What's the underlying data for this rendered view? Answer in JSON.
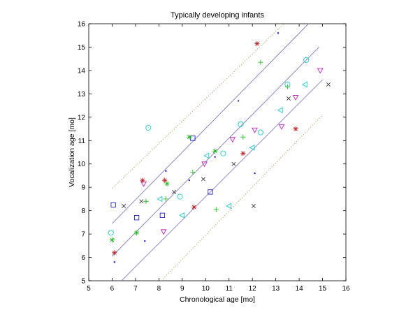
{
  "chart_data": {
    "type": "scatter",
    "title": "Typically developing infants",
    "xlabel": "Chronological age [mo]",
    "ylabel": "Vocalization age [mo]",
    "xlim": [
      5,
      16
    ],
    "ylim": [
      5,
      16
    ],
    "xticks": [
      "5",
      "6",
      "7",
      "8",
      "9",
      "10",
      "11",
      "12",
      "13",
      "14",
      "15",
      "16"
    ],
    "yticks": [
      "5",
      "6",
      "7",
      "8",
      "9",
      "10",
      "11",
      "12",
      "13",
      "14",
      "15",
      "16"
    ],
    "grid": false,
    "legend": "none",
    "colors": {
      "fit_lines": "#8080c0",
      "bound_lines": "#c8a86c",
      "blue": "#2020c0",
      "cyan": "#20c8c8",
      "green": "#20c020",
      "red": "#c02020",
      "magenta": "#c020c0",
      "black": "#404040"
    },
    "lines": [
      {
        "role": "fit-upper",
        "style": "solid",
        "x": [
          6,
          14.4
        ],
        "y": [
          7.45,
          16.0
        ]
      },
      {
        "role": "fit-center",
        "style": "solid",
        "x": [
          6,
          14.85
        ],
        "y": [
          6.05,
          15.0
        ]
      },
      {
        "role": "fit-lower",
        "style": "solid",
        "x": [
          6.4,
          15.0
        ],
        "y": [
          5.0,
          13.6
        ]
      },
      {
        "role": "bound-upper",
        "style": "dotted",
        "x": [
          6,
          13.35
        ],
        "y": [
          8.95,
          16.0
        ]
      },
      {
        "role": "bound-lower",
        "style": "dotted",
        "x": [
          8.1,
          15.0
        ],
        "y": [
          5.0,
          12.1
        ]
      }
    ],
    "series": [
      {
        "marker": "dot",
        "color": "blue",
        "points": [
          [
            6.1,
            5.8
          ],
          [
            7.4,
            6.7
          ],
          [
            8.3,
            9.7
          ],
          [
            9.3,
            9.3
          ],
          [
            10.4,
            10.3
          ],
          [
            11.4,
            12.7
          ],
          [
            12.1,
            9.6
          ],
          [
            13.1,
            15.6
          ]
        ]
      },
      {
        "marker": "square",
        "color": "blue",
        "points": [
          [
            6.05,
            8.25
          ],
          [
            7.05,
            7.7
          ],
          [
            8.15,
            7.8
          ],
          [
            9.45,
            11.1
          ],
          [
            10.2,
            8.8
          ]
        ]
      },
      {
        "marker": "circle",
        "color": "cyan",
        "points": [
          [
            5.95,
            7.05
          ],
          [
            7.55,
            11.55
          ],
          [
            8.9,
            8.6
          ],
          [
            10.75,
            10.45
          ],
          [
            11.5,
            11.7
          ],
          [
            12.35,
            11.35
          ],
          [
            13.5,
            13.4
          ],
          [
            14.3,
            14.45
          ]
        ]
      },
      {
        "marker": "triangle-left",
        "color": "cyan",
        "points": [
          [
            8.05,
            8.5
          ],
          [
            9.0,
            7.8
          ],
          [
            10.05,
            10.35
          ],
          [
            11.0,
            8.2
          ],
          [
            12.0,
            10.7
          ],
          [
            13.2,
            12.3
          ],
          [
            14.25,
            13.4
          ]
        ]
      },
      {
        "marker": "triangle-down",
        "color": "magenta",
        "points": [
          [
            7.35,
            9.15
          ],
          [
            8.2,
            7.1
          ],
          [
            9.95,
            10.0
          ],
          [
            11.15,
            11.05
          ],
          [
            12.1,
            11.45
          ],
          [
            13.25,
            11.6
          ],
          [
            13.85,
            12.85
          ],
          [
            14.9,
            14.0
          ]
        ]
      },
      {
        "marker": "star",
        "color": "red",
        "points": [
          [
            6.1,
            6.2
          ],
          [
            7.3,
            9.3
          ],
          [
            8.25,
            9.3
          ],
          [
            9.5,
            8.15
          ],
          [
            11.6,
            10.45
          ],
          [
            12.2,
            15.15
          ],
          [
            13.85,
            11.5
          ]
        ]
      },
      {
        "marker": "star",
        "color": "green",
        "points": [
          [
            6.0,
            6.75
          ],
          [
            7.05,
            7.05
          ],
          [
            8.35,
            9.15
          ],
          [
            9.3,
            11.15
          ],
          [
            10.4,
            10.55
          ]
        ]
      },
      {
        "marker": "plus",
        "color": "green",
        "points": [
          [
            7.45,
            8.4
          ],
          [
            8.3,
            8.5
          ],
          [
            9.45,
            9.65
          ],
          [
            10.45,
            8.05
          ],
          [
            11.6,
            11.15
          ],
          [
            12.35,
            14.35
          ],
          [
            13.5,
            13.3
          ]
        ]
      },
      {
        "marker": "x",
        "color": "black",
        "points": [
          [
            6.5,
            8.2
          ],
          [
            7.25,
            8.4
          ],
          [
            8.65,
            8.8
          ],
          [
            9.9,
            9.35
          ],
          [
            11.2,
            10.0
          ],
          [
            12.05,
            8.2
          ],
          [
            13.55,
            12.8
          ],
          [
            15.25,
            13.4
          ]
        ]
      }
    ]
  }
}
